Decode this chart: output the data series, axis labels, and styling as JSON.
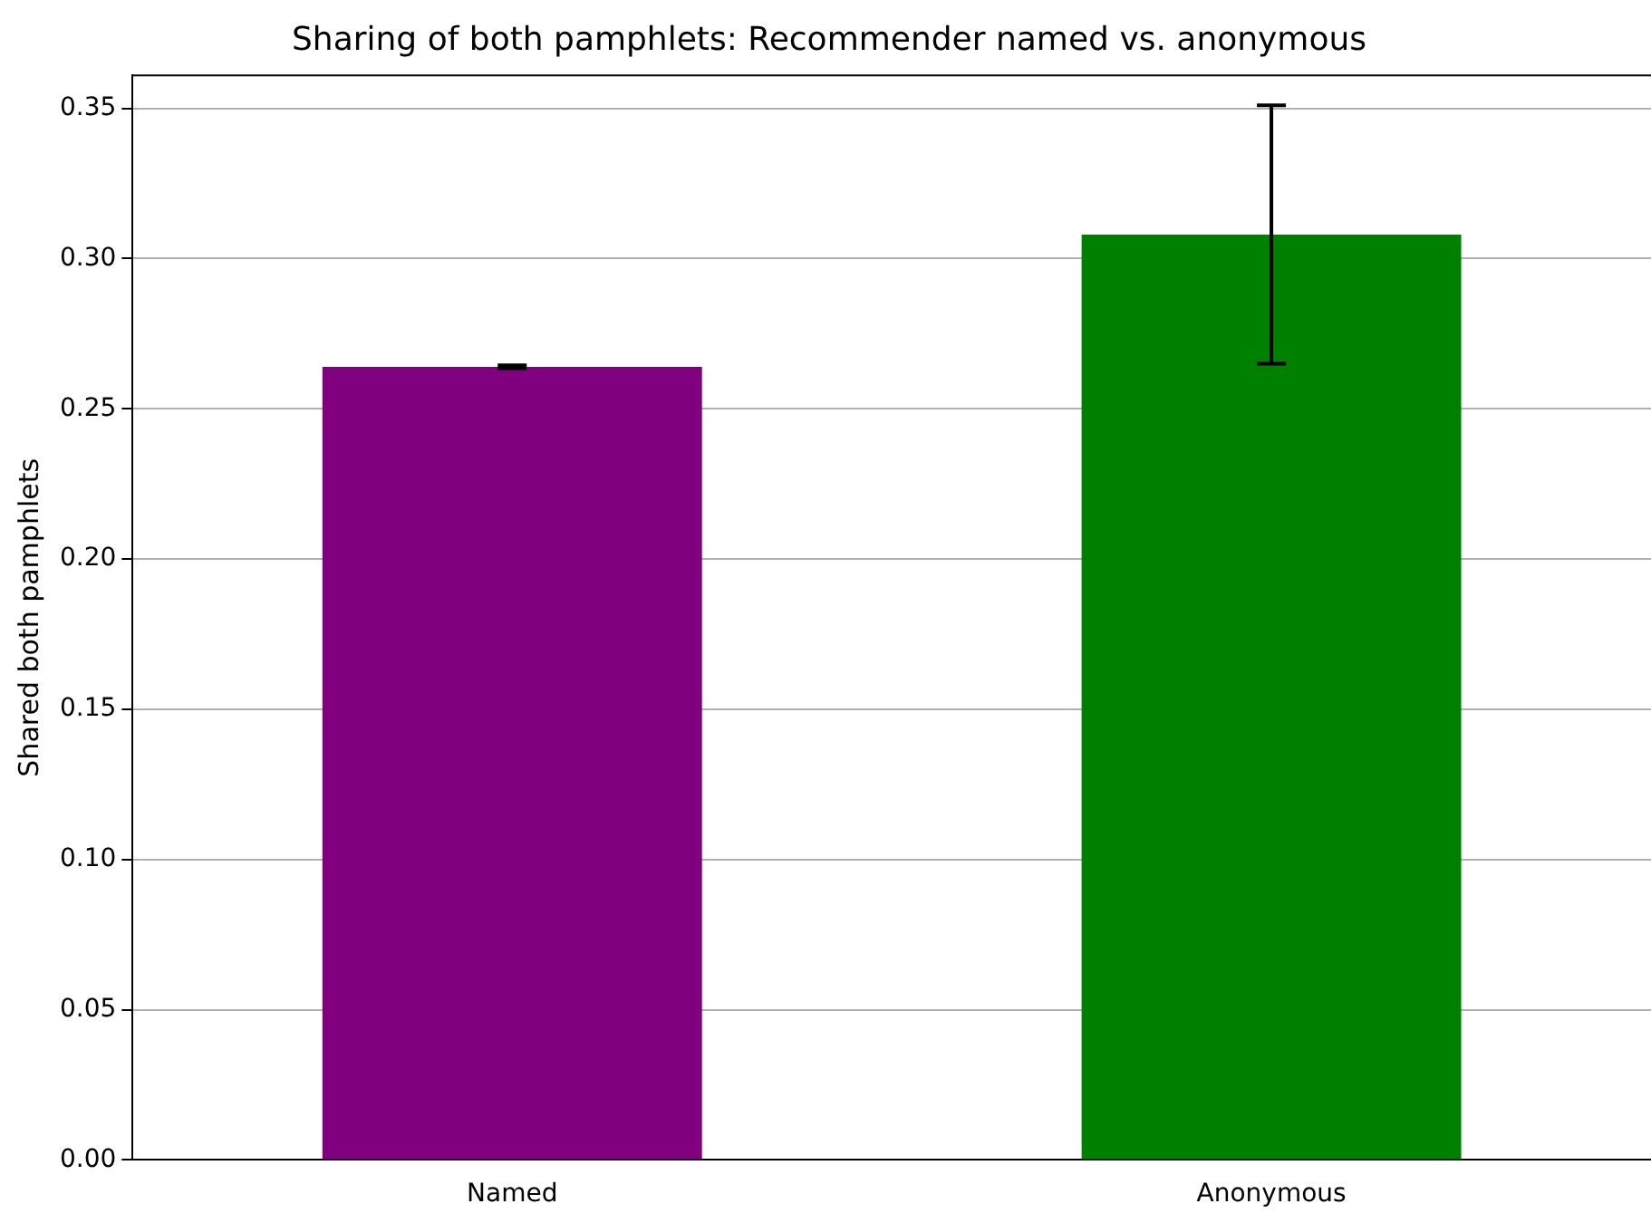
{
  "chart_data": {
    "type": "bar",
    "title": "Sharing of both pamphlets: Recommender named vs. anonymous",
    "ylabel": "Shared both pamphlets",
    "categories": [
      "Named",
      "Anonymous"
    ],
    "values": [
      0.264,
      0.308
    ],
    "colors": [
      "#800080",
      "#008000"
    ],
    "errors": [
      0.0005,
      0.043
    ],
    "ylim": [
      0,
      0.361
    ],
    "yticks": [
      {
        "value": 0,
        "label": "0.00"
      },
      {
        "value": 0.05,
        "label": "0.05"
      },
      {
        "value": 0.1,
        "label": "0.10"
      },
      {
        "value": 0.15,
        "label": "0.15"
      },
      {
        "value": 0.2,
        "label": "0.20"
      },
      {
        "value": 0.25,
        "label": "0.25"
      },
      {
        "value": 0.3,
        "label": "0.30"
      },
      {
        "value": 0.35,
        "label": "0.35"
      }
    ],
    "grid": "y",
    "legend": false
  }
}
